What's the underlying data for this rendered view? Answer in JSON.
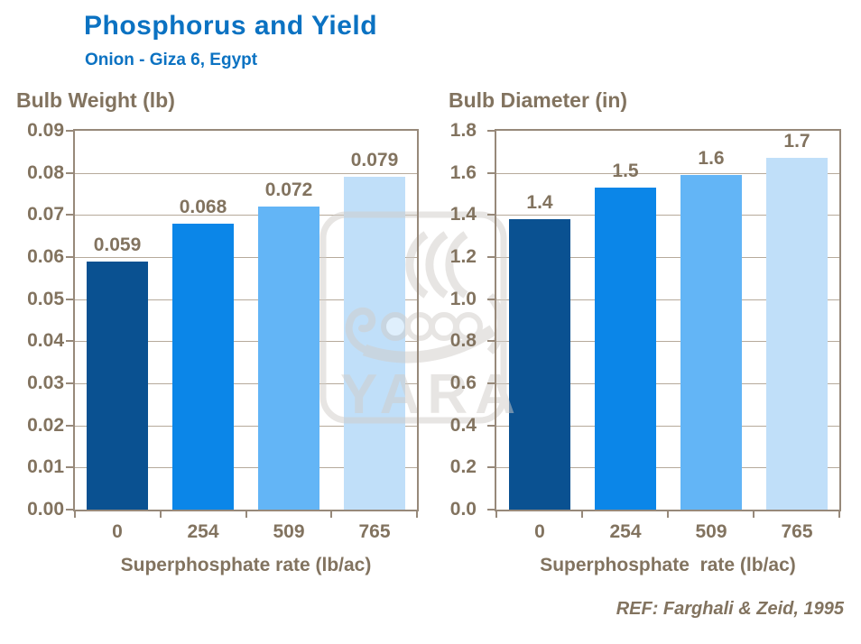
{
  "header": {
    "title": "Phosphorus and Yield",
    "subtitle": "Onion - Giza 6, Egypt"
  },
  "footer": {
    "ref": "REF: Farghali & Zeid, 1995"
  },
  "watermark": {
    "name": "yara-logo",
    "text": "YARA"
  },
  "colors": {
    "title_blue": "#0b72c2",
    "chart_text": "#82735f",
    "axis_line": "#97897a",
    "gridline": "#b6aa9b",
    "watermark_gray": "#d1cdc9",
    "bar_palette": [
      "#0a5191",
      "#0b86e8",
      "#63b5f6",
      "#c0dff9"
    ]
  },
  "chart_data": [
    {
      "type": "bar",
      "title": "Bulb Weight (lb)",
      "xlabel": "Superphosphate rate (lb/ac)",
      "categories": [
        "0",
        "254",
        "509",
        "765"
      ],
      "values": [
        0.059,
        0.068,
        0.072,
        0.079
      ],
      "value_labels": [
        "0.059",
        "0.068",
        "0.072",
        "0.079"
      ],
      "ylim": [
        0,
        0.09
      ],
      "ytick_step": 0.01,
      "yticks": [
        "0.09",
        "0.08",
        "0.07",
        "0.06",
        "0.05",
        "0.04",
        "0.03",
        "0.02",
        "0.01",
        "0.00"
      ],
      "grid": true,
      "legend_position": "none"
    },
    {
      "type": "bar",
      "title": "Bulb Diameter (in)",
      "xlabel": "Superphosphate  rate (lb/ac)",
      "categories": [
        "0",
        "254",
        "509",
        "765"
      ],
      "values": [
        1.4,
        1.5,
        1.6,
        1.7
      ],
      "value_labels": [
        "1.4",
        "1.5",
        "1.6",
        "1.7"
      ],
      "plotted_bar_tops": [
        1.38,
        1.53,
        1.59,
        1.67
      ],
      "ylim": [
        0,
        1.8
      ],
      "ytick_step": 0.2,
      "yticks": [
        "1.8",
        "1.6",
        "1.4",
        "1.2",
        "1.0",
        "0.8",
        "0.6",
        "0.4",
        "0.2",
        "0.0"
      ],
      "grid": true,
      "legend_position": "none"
    }
  ]
}
